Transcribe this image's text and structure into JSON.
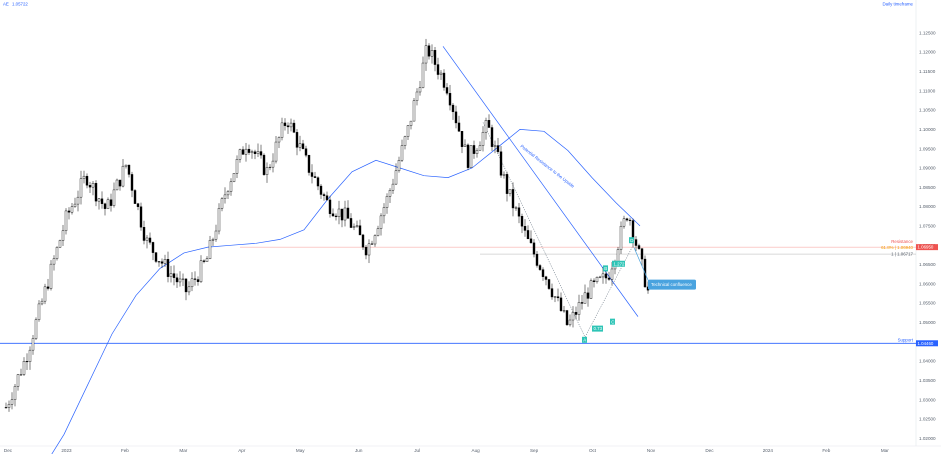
{
  "header": {
    "symbol": "AE",
    "price": "1.05722",
    "timeframe": "Daily timeframe"
  },
  "chart_data": {
    "type": "candlestick",
    "title": "",
    "xlabel": "",
    "ylabel": "",
    "x_ticks": [
      "Dec",
      "2023",
      "Feb",
      "Mar",
      "Apr",
      "May",
      "Jun",
      "Jul",
      "Aug",
      "Sep",
      "Oct",
      "Nov",
      "Dec",
      "2024",
      "Feb",
      "Mar"
    ],
    "y_ticks": [
      "1.12500",
      "1.12000",
      "1.11500",
      "1.11000",
      "1.10500",
      "1.10000",
      "1.09500",
      "1.09000",
      "1.08500",
      "1.08000",
      "1.07500",
      "1.07000",
      "1.06500",
      "1.06000",
      "1.05500",
      "1.05000",
      "1.04500",
      "1.04000",
      "1.03500",
      "1.03000",
      "1.02500",
      "1.02000"
    ],
    "ylim": [
      1.018,
      1.1335
    ],
    "series": [
      {
        "name": "",
        "values": [
          1.028,
          1.041,
          1.059,
          1.077,
          1.088,
          1.079,
          1.091,
          1.071,
          1.064,
          1.058,
          1.066,
          1.085,
          1.097,
          1.089,
          1.103,
          1.091,
          1.081,
          1.077,
          1.069,
          1.082,
          1.099,
          1.121,
          1.111,
          1.092,
          1.101,
          1.084,
          1.071,
          1.061,
          1.049,
          1.058,
          1.062,
          1.079,
          1.058
        ]
      }
    ],
    "moving_average": [
      1.011,
      1.021,
      1.034,
      1.047,
      1.057,
      1.064,
      1.068,
      1.0695,
      1.07,
      1.0705,
      1.0715,
      1.074,
      1.082,
      1.089,
      1.092,
      1.09,
      1.088,
      1.0875,
      1.09,
      1.095,
      1.1,
      1.0995,
      1.0945,
      1.0875,
      1.081,
      1.075
    ],
    "trendline_label": "Potential Resistance to the Upside",
    "annotations": {
      "resistance_label": "Resistance",
      "resistance_price": "1.06950",
      "fib_618_label": "61.8% | 1.06940",
      "fib_1_label": "1 | 1.06717",
      "support_label": "Support",
      "support_price": "1.04460",
      "callout": "Technical confluence",
      "wave_labels": [
        "A",
        "B",
        "C",
        "D"
      ],
      "fib_badges": [
        "1.272",
        "0.73"
      ]
    },
    "colors": {
      "up_candle": "#ffffff",
      "down_candle": "#000000",
      "moving_average": "#2962ff",
      "trendline": "#2962ff",
      "resistance": "#ef5350",
      "support": "#2962ff",
      "badge": "#2ec4b6",
      "callout": "#4aa3df"
    }
  }
}
